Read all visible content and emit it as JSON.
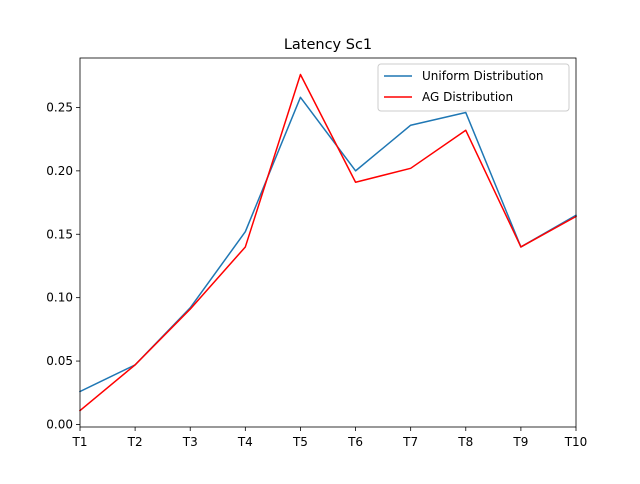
{
  "chart_data": {
    "type": "line",
    "title": "Latency Sc1",
    "xlabel": "",
    "ylabel": "",
    "categories": [
      "T1",
      "T2",
      "T3",
      "T4",
      "T5",
      "T6",
      "T7",
      "T8",
      "T9",
      "T10"
    ],
    "ylim": [
      -0.002,
      0.289
    ],
    "yticks": [
      0.0,
      0.05,
      0.1,
      0.15,
      0.2,
      0.25
    ],
    "ytick_labels": [
      "0.00",
      "0.05",
      "0.10",
      "0.15",
      "0.20",
      "0.25"
    ],
    "grid": false,
    "legend_position": "top-right",
    "series": [
      {
        "name": "Uniform Distribution",
        "color": "#1f77b4",
        "values": [
          0.026,
          0.047,
          0.092,
          0.152,
          0.258,
          0.2,
          0.236,
          0.246,
          0.14,
          0.165
        ]
      },
      {
        "name": "AG Distribution",
        "color": "#ff0000",
        "values": [
          0.011,
          0.047,
          0.091,
          0.14,
          0.276,
          0.191,
          0.202,
          0.232,
          0.14,
          0.164
        ]
      }
    ]
  }
}
